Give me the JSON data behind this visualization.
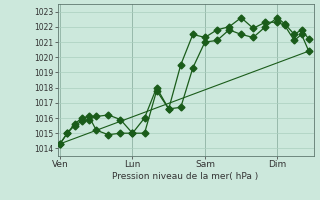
{
  "background_color": "#cce8dc",
  "grid_color": "#aacfbf",
  "line_color": "#1a5c1a",
  "marker_color": "#1a5c1a",
  "xlabel": "Pression niveau de la mer( hPa )",
  "ylim": [
    1013.5,
    1023.5
  ],
  "yticks": [
    1014,
    1015,
    1016,
    1017,
    1018,
    1019,
    1020,
    1021,
    1022,
    1023
  ],
  "day_labels": [
    "Ven",
    "Lun",
    "Sam",
    "Dim"
  ],
  "day_positions": [
    0,
    3,
    6,
    9
  ],
  "xlim": [
    -0.1,
    10.5
  ],
  "series1_x": [
    0.0,
    0.3,
    0.6,
    0.9,
    1.2,
    1.5,
    2.0,
    2.5,
    3.0,
    3.5,
    4.0,
    4.5,
    5.0,
    5.5,
    6.0,
    6.5,
    7.0,
    7.5,
    8.0,
    8.5,
    9.0,
    9.3,
    9.7,
    10.0,
    10.3
  ],
  "series1_y": [
    1014.3,
    1015.0,
    1015.5,
    1015.8,
    1015.9,
    1016.1,
    1016.2,
    1015.9,
    1015.0,
    1015.0,
    1017.8,
    1016.6,
    1016.7,
    1019.3,
    1021.0,
    1021.1,
    1021.8,
    1021.5,
    1021.3,
    1022.0,
    1022.6,
    1022.2,
    1021.5,
    1021.8,
    1021.2
  ],
  "series2_x": [
    0.0,
    0.3,
    0.6,
    0.9,
    1.2,
    1.5,
    2.0,
    2.5,
    3.0,
    3.5,
    4.0,
    4.5,
    5.0,
    5.5,
    6.0,
    6.5,
    7.0,
    7.5,
    8.0,
    8.5,
    9.0,
    9.3,
    9.7,
    10.0,
    10.3
  ],
  "series2_y": [
    1014.3,
    1015.0,
    1015.6,
    1016.0,
    1016.1,
    1015.2,
    1014.9,
    1015.0,
    1015.0,
    1016.0,
    1018.0,
    1016.6,
    1019.5,
    1021.5,
    1021.3,
    1021.8,
    1022.0,
    1022.6,
    1021.9,
    1022.3,
    1022.3,
    1022.1,
    1021.1,
    1021.5,
    1020.4
  ],
  "series3_x": [
    0.0,
    10.3
  ],
  "series3_y": [
    1014.3,
    1020.4
  ],
  "vline_positions": [
    0,
    3,
    6,
    9
  ]
}
